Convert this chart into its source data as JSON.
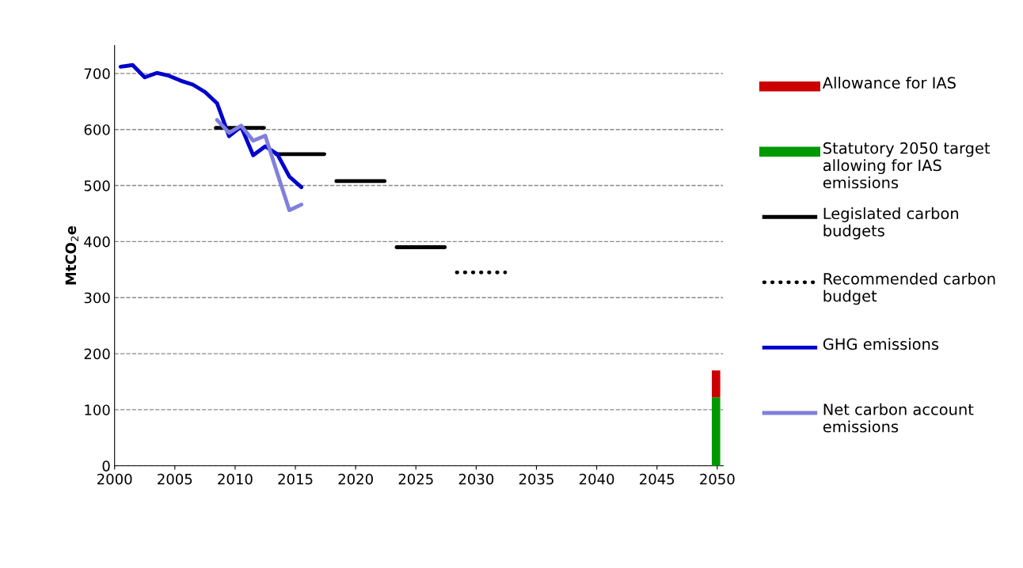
{
  "chart_data": {
    "type": "line",
    "ylabel": "MtCO$_{2}$e",
    "xlim": [
      2000,
      2050.5
    ],
    "xticks": [
      2000,
      2005,
      2010,
      2015,
      2020,
      2025,
      2030,
      2035,
      2040,
      2045,
      2050
    ],
    "ylim": [
      0,
      750
    ],
    "yticks": [
      0,
      100,
      200,
      300,
      400,
      500,
      600,
      700
    ],
    "grid": "y",
    "legend": "right",
    "stacked": true,
    "series": [
      {
        "name": "Statutory 2050 target allowing for IAS emissions",
        "type": "bar",
        "color": "#009900",
        "x": [
          2049.9
        ],
        "values": [
          122
        ]
      },
      {
        "name": "Allowance for IAS",
        "type": "bar",
        "color": "#cc0000",
        "x": [
          2049.9
        ],
        "values": [
          48
        ]
      },
      {
        "name": "Legislated carbon budgets",
        "color": "#000000",
        "line_style": "solid",
        "x": [
          2008.4,
          2012.4,
          2012.9,
          2013.4,
          2017.4,
          2017.9,
          2018.4,
          2022.4,
          2022.9,
          2023.4,
          2027.4
        ],
        "values": [
          603,
          603,
          null,
          556,
          556,
          null,
          508,
          508,
          null,
          390,
          390
        ]
      },
      {
        "name": "Recommended carbon budget",
        "color": "#000000",
        "line_style": "dotted",
        "x": [
          2028.4,
          2032.4
        ],
        "values": [
          345,
          345
        ]
      },
      {
        "name": "GHG emissions",
        "color": "#0000cc",
        "line_style": "solid",
        "x": [
          2000.5,
          2001.5,
          2002.5,
          2003.5,
          2004.5,
          2005.5,
          2006.5,
          2007.5,
          2008.5,
          2009.5,
          2010.5,
          2011.5,
          2012.5,
          2013.5,
          2014.5,
          2015.5
        ],
        "values": [
          712,
          715,
          693,
          701,
          696,
          687,
          680,
          667,
          647,
          588,
          605,
          554,
          570,
          556,
          516,
          497
        ]
      },
      {
        "name": "Net carbon account emissions",
        "color": "#8080dd",
        "line_style": "solid",
        "x": [
          2008.5,
          2009.5,
          2010.5,
          2011.5,
          2012.5,
          2013.5,
          2014.5,
          2015.5
        ],
        "values": [
          617,
          594,
          607,
          580,
          589,
          522,
          456,
          466
        ]
      }
    ]
  }
}
